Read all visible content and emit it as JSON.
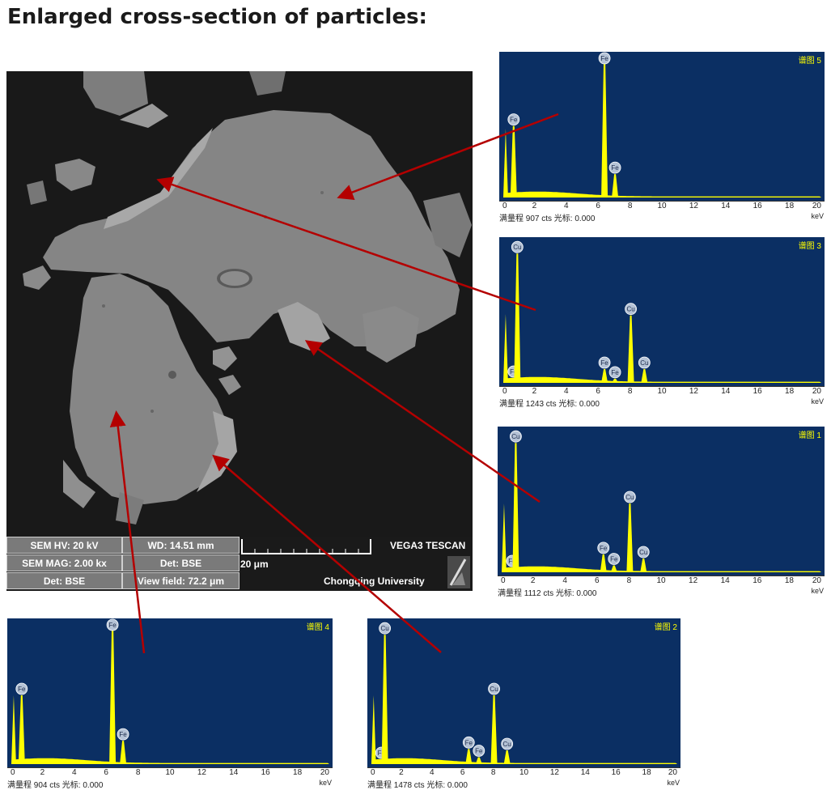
{
  "title": "Enlarged cross-section of particles:",
  "sem_info": {
    "hv": "SEM HV: 20 kV",
    "wd": "WD: 14.51 mm",
    "brand": "VEGA3 TESCAN",
    "mag": "SEM MAG: 2.00 kx",
    "det_center": "Det: BSE",
    "scale": "20 μm",
    "det_left": "Det: BSE",
    "view_field": "View field: 72.2 μm",
    "institution": "Chongqing University"
  },
  "spectra": [
    {
      "id": "s5",
      "name": "谱图 5",
      "footer": "满量程 907 cts 光标: 0.000",
      "unit": "keV",
      "ticks": [
        "0",
        "2",
        "4",
        "6",
        "8",
        "10",
        "12",
        "14",
        "16",
        "18",
        "20"
      ],
      "peaks": [
        {
          "el": "Fe",
          "e": 0.7,
          "h": 0.52
        },
        {
          "el": "Fe",
          "e": 6.4,
          "h": 1.0
        },
        {
          "el": "Fe",
          "e": 7.06,
          "h": 0.17
        }
      ]
    },
    {
      "id": "s3",
      "name": "谱图 3",
      "footer": "满量程 1243 cts 光标: 0.000",
      "unit": "keV",
      "ticks": [
        "0",
        "2",
        "4",
        "6",
        "8",
        "10",
        "12",
        "14",
        "16",
        "18",
        "20"
      ],
      "peaks": [
        {
          "el": "Fe",
          "e": 0.7,
          "h": 0.0
        },
        {
          "el": "Cu",
          "e": 0.93,
          "h": 0.94
        },
        {
          "el": "Fe",
          "e": 6.4,
          "h": 0.1
        },
        {
          "el": "Fe",
          "e": 7.06,
          "h": 0.03
        },
        {
          "el": "Cu",
          "e": 8.05,
          "h": 0.49
        },
        {
          "el": "Cu",
          "e": 8.9,
          "h": 0.1
        }
      ]
    },
    {
      "id": "s1",
      "name": "谱图 1",
      "footer": "满量程 1112 cts 光标: 0.000",
      "unit": "keV",
      "ticks": [
        "0",
        "2",
        "4",
        "6",
        "8",
        "10",
        "12",
        "14",
        "16",
        "18",
        "20"
      ],
      "peaks": [
        {
          "el": "Fe",
          "e": 0.7,
          "h": 0.0
        },
        {
          "el": "Cu",
          "e": 0.93,
          "h": 0.94
        },
        {
          "el": "Fe",
          "e": 6.4,
          "h": 0.13
        },
        {
          "el": "Fe",
          "e": 7.06,
          "h": 0.05
        },
        {
          "el": "Cu",
          "e": 8.05,
          "h": 0.5
        },
        {
          "el": "Cu",
          "e": 8.9,
          "h": 0.1
        }
      ]
    },
    {
      "id": "s4",
      "name": "谱图 4",
      "footer": "满量程 904 cts 光标: 0.000",
      "unit": "keV",
      "ticks": [
        "0",
        "2",
        "4",
        "6",
        "8",
        "10",
        "12",
        "14",
        "16",
        "18",
        "20"
      ],
      "peaks": [
        {
          "el": "Fe",
          "e": 0.7,
          "h": 0.5
        },
        {
          "el": "Fe",
          "e": 6.4,
          "h": 1.0
        },
        {
          "el": "Fe",
          "e": 7.06,
          "h": 0.17
        }
      ]
    },
    {
      "id": "s2",
      "name": "谱图 2",
      "footer": "满量程 1478 cts 光标: 0.000",
      "unit": "keV",
      "ticks": [
        "0",
        "2",
        "4",
        "6",
        "8",
        "10",
        "12",
        "14",
        "16",
        "18",
        "20"
      ],
      "peaks": [
        {
          "el": "Fe",
          "e": 0.7,
          "h": 0.0
        },
        {
          "el": "Cu",
          "e": 0.93,
          "h": 0.94
        },
        {
          "el": "Fe",
          "e": 6.4,
          "h": 0.11
        },
        {
          "el": "Fe",
          "e": 7.06,
          "h": 0.05
        },
        {
          "el": "Cu",
          "e": 8.05,
          "h": 0.5
        },
        {
          "el": "Cu",
          "e": 8.9,
          "h": 0.1
        }
      ]
    }
  ]
}
